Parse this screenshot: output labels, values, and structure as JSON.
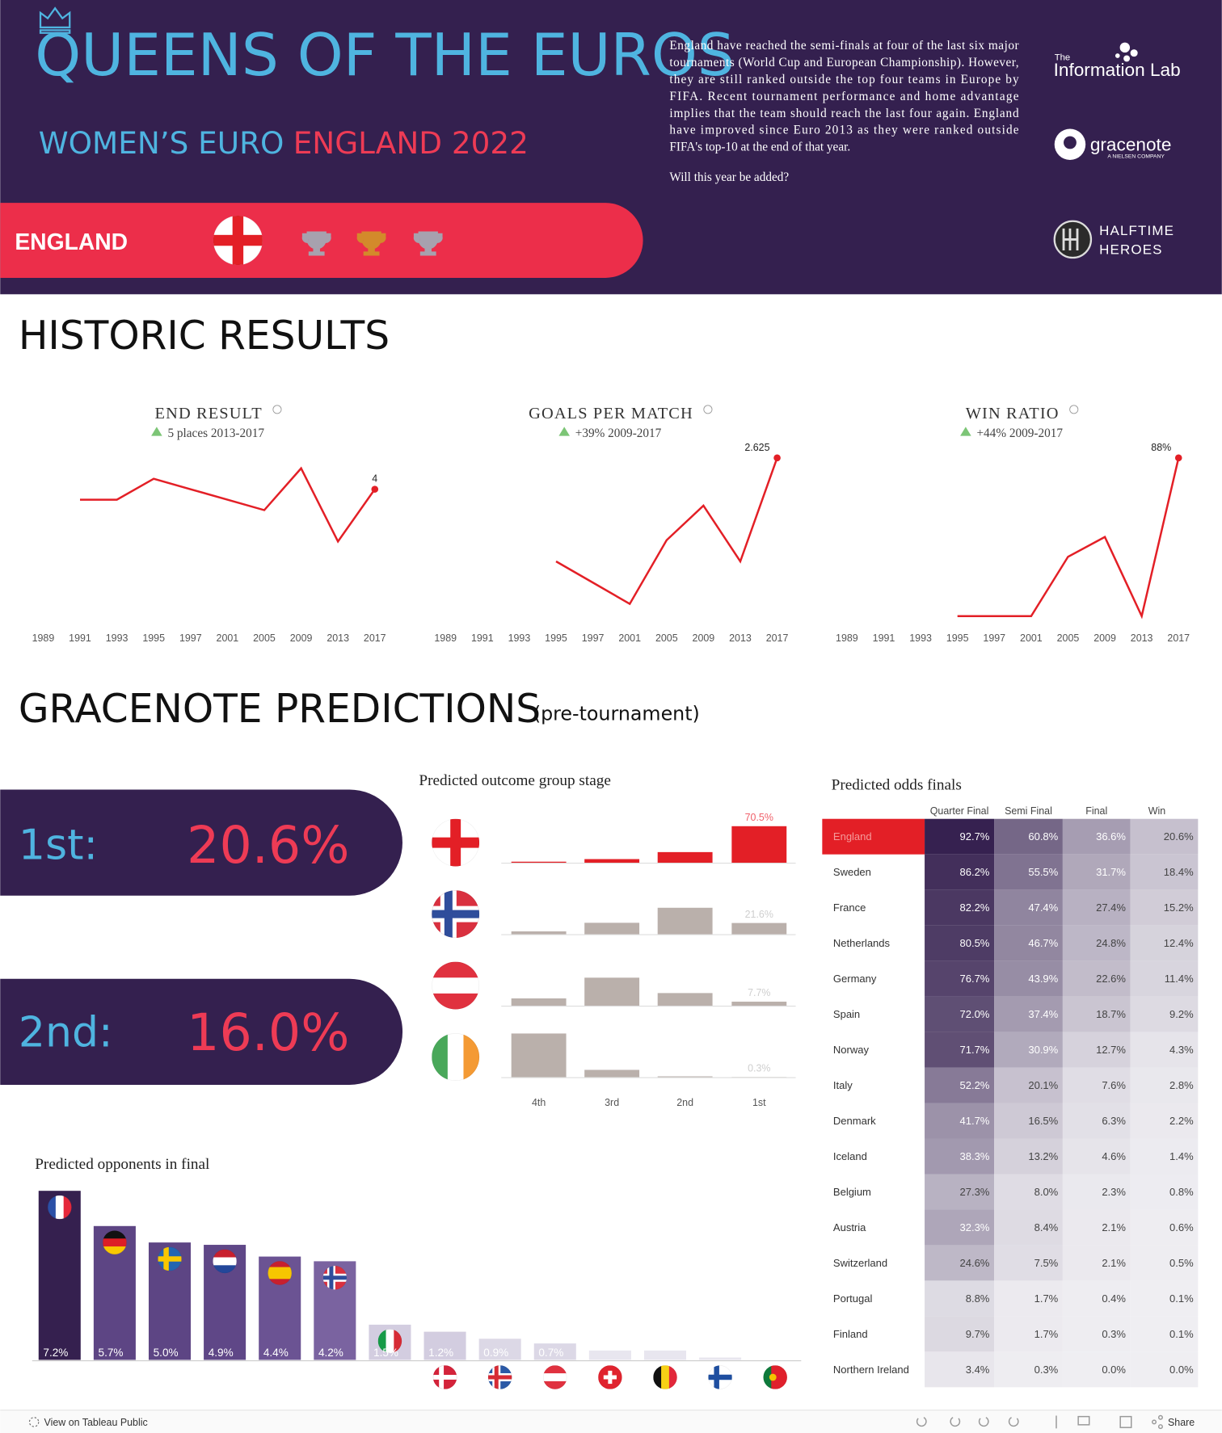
{
  "header": {
    "title": "QUEENS OF THE EUROS",
    "subtitle_a": "WOMEN’S EURO",
    "subtitle_b": "ENGLAND 2022",
    "team": "ENGLAND",
    "description": [
      "England have reached the semi-finals at four of the last six major",
      "tournaments (World Cup and European Championship). However,",
      "they are still ranked outside the top four teams in Europe by",
      "FIFA. Recent tournament performance and home advantage",
      "implies that the team should reach the last four again. England",
      "have improved since Euro 2013 as they were ranked outside",
      "FIFA's top-10 at the end of that year."
    ],
    "question": "Will this year be added?",
    "logos": {
      "infolab_small": "The",
      "infolab": "Information Lab",
      "gracenote": "gracenote",
      "gracenote_sub": "A NIELSEN COMPANY",
      "halftime_a": "HALFTIME",
      "halftime_b": "HEROES"
    }
  },
  "sections": {
    "historic": "HISTORIC RESULTS",
    "predictions": "GRACENOTE PREDICTIONS",
    "predictions_note": "(pre-tournament)"
  },
  "ranking": {
    "first_label": "1st:",
    "first_value": "20.6%",
    "second_label": "2nd:",
    "second_value": "16.0%"
  },
  "chart_data": [
    {
      "type": "line",
      "title": "END RESULT",
      "subtitle": "5 places 2013-2017",
      "categories": [
        "1989",
        "1991",
        "1993",
        "1995",
        "1997",
        "2001",
        "2005",
        "2009",
        "2013",
        "2017"
      ],
      "values": [
        null,
        5,
        5,
        3,
        4,
        5,
        6,
        2,
        9,
        4
      ],
      "color": "#e31f26",
      "ylim": [
        17,
        1
      ],
      "label_last": true
    },
    {
      "type": "line",
      "title": "GOALS PER MATCH",
      "subtitle": "+39% 2009-2017",
      "categories": [
        "1989",
        "1991",
        "1993",
        "1995",
        "1997",
        "2001",
        "2005",
        "2009",
        "2013",
        "2017"
      ],
      "values": [
        null,
        null,
        null,
        1.0,
        0.667,
        0.333,
        1.333,
        1.875,
        1.0,
        2.625
      ],
      "color": "#e31f26",
      "ylim": [
        0,
        2.625
      ],
      "label_last": true
    },
    {
      "type": "line",
      "title": "WIN RATIO",
      "subtitle": "+44% 2009-2017",
      "categories": [
        "1989",
        "1991",
        "1993",
        "1995",
        "1997",
        "2001",
        "2005",
        "2009",
        "2013",
        "2017"
      ],
      "values": [
        null,
        null,
        null,
        0,
        0,
        0,
        33,
        44,
        0,
        88
      ],
      "value_labels": [
        null,
        null,
        null,
        null,
        null,
        null,
        null,
        null,
        null,
        "88%"
      ],
      "color": "#e31f26",
      "ylim": [
        -5,
        88
      ],
      "label_last": true
    },
    {
      "type": "row-bar",
      "title": "Predicted outcome group stage",
      "categories": [
        "4th",
        "3rd",
        "2nd",
        "1st"
      ],
      "ylim": [
        0,
        100
      ],
      "series": [
        {
          "color": "#e31f26",
          "label_color": "#f0606a",
          "values": [
            2,
            7,
            20.5,
            70.5
          ],
          "value_labels": [
            null,
            null,
            null,
            "70.5%"
          ]
        },
        {
          "color": "#bab0ab",
          "label_color": "#cfcfcf",
          "values": [
            5.4,
            22,
            51,
            21.6
          ],
          "value_labels": [
            null,
            null,
            null,
            "21.6%"
          ]
        },
        {
          "color": "#bab0ab",
          "label_color": "#cfcfcf",
          "values": [
            14,
            54,
            24.3,
            7.7
          ],
          "value_labels": [
            null,
            null,
            null,
            "7.7%"
          ]
        },
        {
          "color": "#bab0ab",
          "label_color": "#cfcfcf",
          "values": [
            84.2,
            14,
            1.5,
            0.3
          ],
          "value_labels": [
            null,
            null,
            null,
            "0.3%"
          ]
        }
      ]
    },
    {
      "type": "bar",
      "title": "Predicted opponents in final",
      "values": [
        7.2,
        5.7,
        5.0,
        4.9,
        4.4,
        4.2,
        1.5,
        1.2,
        0.9,
        0.7,
        0.4,
        0.4,
        0.1,
        0
      ],
      "value_labels": [
        "7.2%",
        "5.7%",
        "5.0%",
        "4.9%",
        "4.4%",
        "4.2%",
        "1.5%",
        "1.2%",
        "0.9%",
        "0.7%",
        null,
        null,
        null,
        null
      ],
      "colors": [
        "#35204f",
        "#5d4584",
        "#5d4584",
        "#5f4787",
        "#6b5393",
        "#7a63a0",
        "#d3cde0",
        "#d3cde0",
        "#dcd8e6",
        "#dcd8e6",
        "#e8e6ef",
        "#e8e6ef",
        "#e8e6ef",
        "#e8e6ef"
      ],
      "ylim": [
        0,
        7.2
      ]
    }
  ],
  "table": {
    "title": "Predicted odds finals",
    "columns": [
      "Quarter Final",
      "Semi Final",
      "Final",
      "Win"
    ],
    "rows": [
      [
        "England",
        "92.7%",
        "60.8%",
        "36.6%",
        "20.6%"
      ],
      [
        "Sweden",
        "86.2%",
        "55.5%",
        "31.7%",
        "18.4%"
      ],
      [
        "France",
        "82.2%",
        "47.4%",
        "27.4%",
        "15.2%"
      ],
      [
        "Netherlands",
        "80.5%",
        "46.7%",
        "24.8%",
        "12.4%"
      ],
      [
        "Germany",
        "76.7%",
        "43.9%",
        "22.6%",
        "11.4%"
      ],
      [
        "Spain",
        "72.0%",
        "37.4%",
        "18.7%",
        "9.2%"
      ],
      [
        "Norway",
        "71.7%",
        "30.9%",
        "12.7%",
        "4.3%"
      ],
      [
        "Italy",
        "52.2%",
        "20.1%",
        "7.6%",
        "2.8%"
      ],
      [
        "Denmark",
        "41.7%",
        "16.5%",
        "6.3%",
        "2.2%"
      ],
      [
        "Iceland",
        "38.3%",
        "13.2%",
        "4.6%",
        "1.4%"
      ],
      [
        "Belgium",
        "27.3%",
        "8.0%",
        "2.3%",
        "0.8%"
      ],
      [
        "Austria",
        "32.3%",
        "8.4%",
        "2.1%",
        "0.6%"
      ],
      [
        "Switzerland",
        "24.6%",
        "7.5%",
        "2.1%",
        "0.5%"
      ],
      [
        "Portugal",
        "8.8%",
        "1.7%",
        "0.4%",
        "0.1%"
      ],
      [
        "Finland",
        "9.7%",
        "1.7%",
        "0.3%",
        "0.1%"
      ],
      [
        "Northern Ireland",
        "3.4%",
        "0.3%",
        "0.0%",
        "0.0%"
      ]
    ]
  },
  "footer": {
    "tableau": "View on Tableau Public",
    "share": "Share"
  }
}
